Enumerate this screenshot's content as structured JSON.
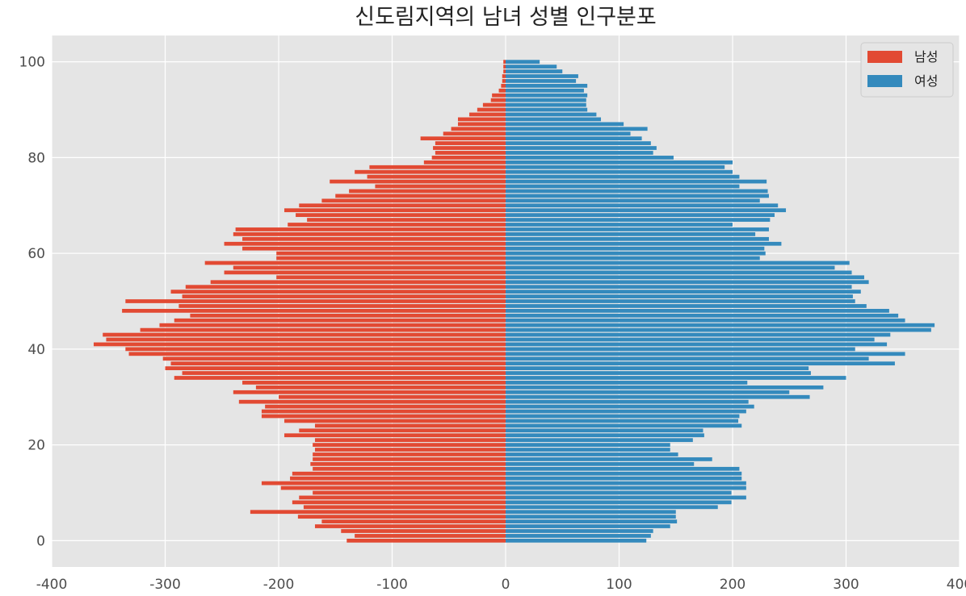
{
  "chart_data": {
    "type": "bar",
    "orientation": "horizontal",
    "title": "신도림지역의 남녀 성별 인구분포",
    "xlabel": "",
    "ylabel": "",
    "xlim": [
      -400,
      400
    ],
    "ylim": [
      -5.5,
      105.5
    ],
    "xticks": [
      -400,
      -300,
      -200,
      -100,
      0,
      100,
      200,
      300,
      400
    ],
    "yticks": [
      0,
      20,
      40,
      60,
      80,
      100
    ],
    "grid": true,
    "legend_position": "top-right",
    "age": [
      0,
      1,
      2,
      3,
      4,
      5,
      6,
      7,
      8,
      9,
      10,
      11,
      12,
      13,
      14,
      15,
      16,
      17,
      18,
      19,
      20,
      21,
      22,
      23,
      24,
      25,
      26,
      27,
      28,
      29,
      30,
      31,
      32,
      33,
      34,
      35,
      36,
      37,
      38,
      39,
      40,
      41,
      42,
      43,
      44,
      45,
      46,
      47,
      48,
      49,
      50,
      51,
      52,
      53,
      54,
      55,
      56,
      57,
      58,
      59,
      60,
      61,
      62,
      63,
      64,
      65,
      66,
      67,
      68,
      69,
      70,
      71,
      72,
      73,
      74,
      75,
      76,
      77,
      78,
      79,
      80,
      81,
      82,
      83,
      84,
      85,
      86,
      87,
      88,
      89,
      90,
      91,
      92,
      93,
      94,
      95,
      96,
      97,
      98,
      99,
      100
    ],
    "series": [
      {
        "name": "남성",
        "color": "#e24a33",
        "values": [
          -140,
          -133,
          -145,
          -168,
          -162,
          -183,
          -225,
          -178,
          -188,
          -182,
          -170,
          -198,
          -215,
          -190,
          -188,
          -170,
          -172,
          -170,
          -170,
          -168,
          -170,
          -168,
          -195,
          -182,
          -168,
          -195,
          -215,
          -215,
          -212,
          -235,
          -200,
          -240,
          -220,
          -232,
          -292,
          -285,
          -300,
          -295,
          -302,
          -332,
          -335,
          -363,
          -352,
          -355,
          -322,
          -305,
          -292,
          -278,
          -338,
          -288,
          -335,
          -285,
          -295,
          -282,
          -260,
          -202,
          -248,
          -240,
          -265,
          -202,
          -202,
          -232,
          -248,
          -232,
          -240,
          -238,
          -192,
          -175,
          -185,
          -195,
          -182,
          -162,
          -150,
          -138,
          -115,
          -155,
          -122,
          -133,
          -120,
          -72,
          -65,
          -62,
          -64,
          -62,
          -75,
          -55,
          -48,
          -42,
          -42,
          -32,
          -25,
          -20,
          -13,
          -12,
          -6,
          -4,
          -3,
          -3,
          -2,
          -2,
          -2
        ],
        "label_color_note": ""
      },
      {
        "name": "여성",
        "color": "#348abd",
        "values": [
          124,
          128,
          130,
          145,
          151,
          150,
          150,
          187,
          199,
          212,
          199,
          212,
          212,
          208,
          208,
          206,
          166,
          182,
          152,
          145,
          145,
          165,
          175,
          174,
          208,
          205,
          206,
          212,
          219,
          214,
          268,
          250,
          280,
          213,
          300,
          269,
          267,
          343,
          320,
          352,
          308,
          336,
          325,
          339,
          375,
          378,
          352,
          346,
          338,
          318,
          308,
          306,
          313,
          305,
          320,
          316,
          305,
          290,
          303,
          224,
          229,
          228,
          243,
          232,
          220,
          232,
          200,
          233,
          237,
          247,
          240,
          224,
          232,
          231,
          206,
          230,
          206,
          200,
          193,
          200,
          148,
          130,
          133,
          128,
          120,
          110,
          125,
          104,
          84,
          80,
          72,
          71,
          71,
          72,
          69,
          72,
          62,
          64,
          50,
          45,
          30
        ],
        "label_color_note": ""
      }
    ]
  }
}
